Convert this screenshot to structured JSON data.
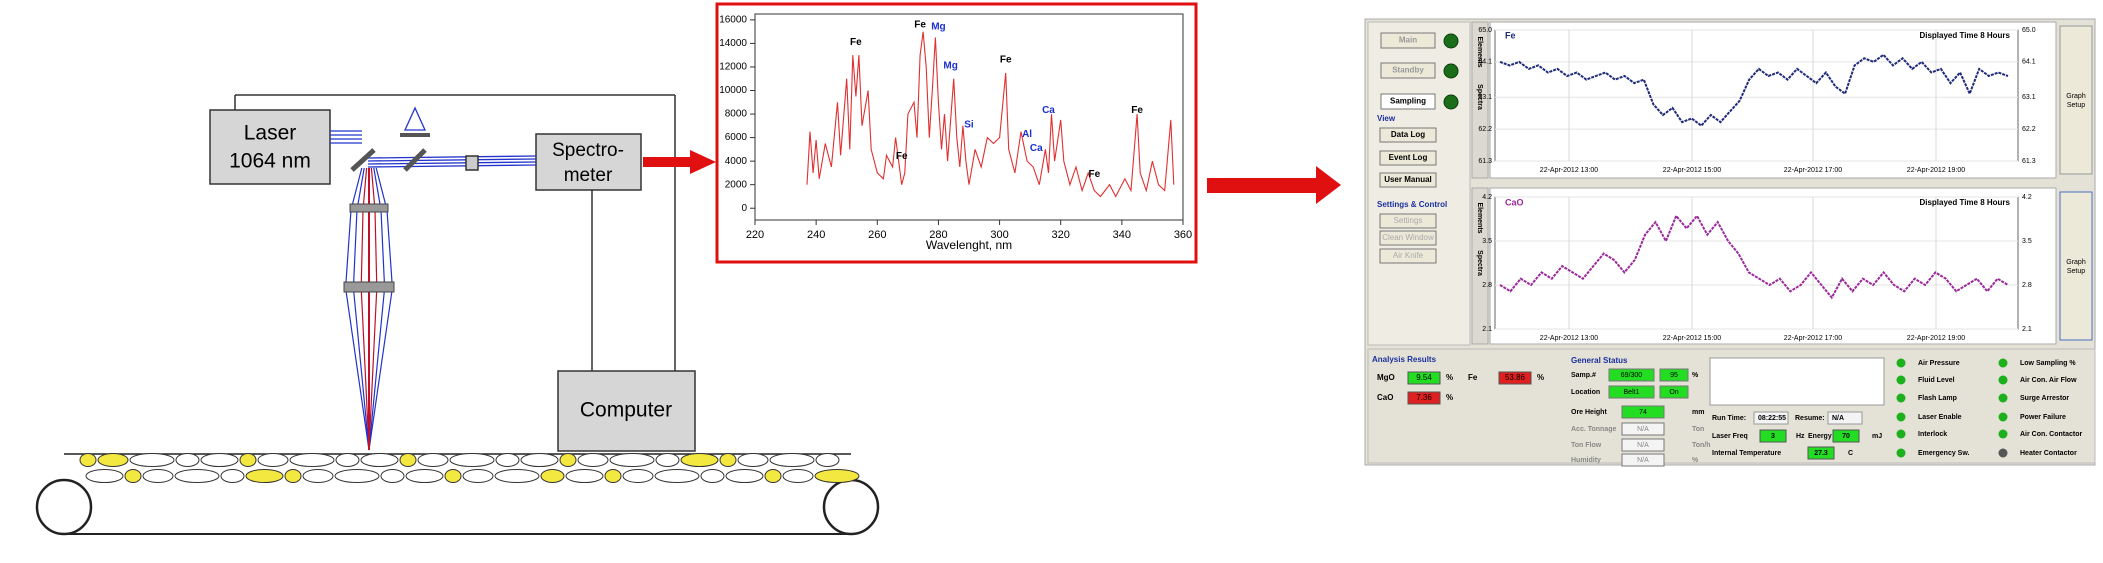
{
  "schematic": {
    "laser": [
      "Laser",
      "1064 nm"
    ],
    "spectrometer": [
      "Spectro-",
      "meter"
    ],
    "computer": "Computer"
  },
  "chart_data": {
    "type": "line",
    "xlabel": "Wavelenght, nm",
    "xlim": [
      220,
      360
    ],
    "xticks": [
      220,
      240,
      260,
      280,
      300,
      320,
      340,
      360
    ],
    "ylim": [
      -1000,
      16500
    ],
    "yticks": [
      0,
      2000,
      4000,
      6000,
      8000,
      10000,
      12000,
      14000,
      16000
    ],
    "x": [
      237,
      238,
      239,
      240,
      241,
      243,
      245,
      247,
      248,
      250,
      251,
      252,
      253,
      254,
      255,
      257,
      258,
      260,
      262,
      263,
      265,
      266,
      268,
      269,
      270,
      272,
      273,
      274,
      275,
      276,
      277,
      278,
      279,
      280,
      281,
      282,
      283,
      285,
      286,
      287,
      288,
      289,
      290,
      292,
      294,
      296,
      298,
      300,
      302,
      303,
      305,
      307,
      309,
      311,
      313,
      315,
      316,
      317,
      318,
      320,
      321,
      323,
      325,
      327,
      329,
      331,
      333,
      336,
      338,
      341,
      343,
      345,
      346,
      348,
      350,
      352,
      354,
      356,
      357
    ],
    "series": [
      {
        "color": "#e03030",
        "values": [
          2000,
          6500,
          3000,
          5800,
          2500,
          5500,
          3500,
          9000,
          4500,
          11000,
          5000,
          13000,
          9500,
          13000,
          7000,
          10000,
          5000,
          3000,
          2500,
          4500,
          3500,
          6000,
          2000,
          3000,
          8000,
          9000,
          6000,
          13000,
          15000,
          12000,
          6000,
          10000,
          14500,
          9000,
          5000,
          8000,
          4000,
          11000,
          6000,
          3500,
          7000,
          4000,
          2000,
          5000,
          3500,
          6000,
          5500,
          6000,
          11500,
          5000,
          3000,
          6500,
          4000,
          3500,
          2000,
          5000,
          3000,
          8000,
          4000,
          7500,
          4000,
          2000,
          3500,
          1500,
          3000,
          1500,
          1000,
          2000,
          1000,
          2500,
          1500,
          8000,
          3000,
          1500,
          4000,
          2000,
          1500,
          7500,
          2000
        ]
      }
    ],
    "annotations": [
      {
        "text": "Fe",
        "x": 253,
        "y": 13500,
        "color": "#000"
      },
      {
        "text": "Fe",
        "x": 268,
        "y": 3800,
        "color": "#000"
      },
      {
        "text": "Fe",
        "x": 274,
        "y": 15000,
        "color": "#000"
      },
      {
        "text": "Mg",
        "x": 280,
        "y": 14800,
        "color": "#1a2fd0"
      },
      {
        "text": "Mg",
        "x": 284,
        "y": 11500,
        "color": "#1a2fd0"
      },
      {
        "text": "Si",
        "x": 290,
        "y": 6500,
        "color": "#1a2fd0"
      },
      {
        "text": "Fe",
        "x": 302,
        "y": 12000,
        "color": "#000"
      },
      {
        "text": "Al",
        "x": 309,
        "y": 5700,
        "color": "#1a2fd0"
      },
      {
        "text": "Ca",
        "x": 312,
        "y": 4500,
        "color": "#1a2fd0"
      },
      {
        "text": "Ca",
        "x": 316,
        "y": 7700,
        "color": "#1a2fd0"
      },
      {
        "text": "Fe",
        "x": 331,
        "y": 2300,
        "color": "#000"
      },
      {
        "text": "Fe",
        "x": 345,
        "y": 7700,
        "color": "#000"
      }
    ]
  },
  "screenshot": {
    "sidebar": {
      "buttons": [
        "Main",
        "Standby",
        "Sampling"
      ],
      "view_title": "View",
      "view_buttons": [
        "Data Log",
        "Event Log",
        "User Manual"
      ],
      "settings_title": "Settings & Control",
      "settings_buttons": [
        "Settings",
        "Clean Window",
        "Air Knife"
      ]
    },
    "tabs": [
      "Elements",
      "Spectra"
    ],
    "graphs": [
      {
        "label": "Fe",
        "time_label": "Displayed Time 8 Hours",
        "setup": [
          "Graph",
          "Setup"
        ],
        "color": "#1f2a7a",
        "xticks": [
          "22-Apr-2012 13:00",
          "22-Apr-2012 15:00",
          "22-Apr-2012 17:00",
          "22-Apr-2012 19:00"
        ],
        "ylim": [
          61.3,
          65
        ],
        "yticks": [
          61.3,
          62.2,
          63.1,
          64.1,
          {
            "value": 65,
            "label": "65.0"
          }
        ],
        "values": [
          64.1,
          64.0,
          64.1,
          63.9,
          64.0,
          63.8,
          63.9,
          63.7,
          63.8,
          63.6,
          63.7,
          63.8,
          63.6,
          63.7,
          63.5,
          63.6,
          62.9,
          62.6,
          62.8,
          62.4,
          62.5,
          62.3,
          62.6,
          62.4,
          62.7,
          63.0,
          63.6,
          63.9,
          63.7,
          63.8,
          63.6,
          63.9,
          63.7,
          63.5,
          63.8,
          63.4,
          63.2,
          64.0,
          64.2,
          64.1,
          64.3,
          64.0,
          64.2,
          63.9,
          64.1,
          63.8,
          63.9,
          63.5,
          63.8,
          63.2,
          63.9,
          63.7,
          63.8,
          63.7
        ]
      },
      {
        "label": "CaO",
        "time_label": "Displayed Time 8 Hours",
        "setup": [
          "Graph",
          "Setup"
        ],
        "color": "#9a2a9a",
        "xticks": [
          "22-Apr-2012 13:00",
          "22-Apr-2012 15:00",
          "22-Apr-2012 17:00",
          "22-Apr-2012 19:00"
        ],
        "ylim": [
          2.1,
          4.2
        ],
        "yticks": [
          2.1,
          2.8,
          3.5,
          4.2
        ],
        "values": [
          2.8,
          2.7,
          2.9,
          2.8,
          3.0,
          2.9,
          3.1,
          3.0,
          2.9,
          3.1,
          3.3,
          3.2,
          3.0,
          3.2,
          3.6,
          3.8,
          3.5,
          3.9,
          3.7,
          3.9,
          3.6,
          3.8,
          3.5,
          3.3,
          3.0,
          2.9,
          2.8,
          2.9,
          2.7,
          2.8,
          3.0,
          2.8,
          2.6,
          2.9,
          2.7,
          2.9,
          2.8,
          3.0,
          2.8,
          2.7,
          2.9,
          2.8,
          3.0,
          2.9,
          2.7,
          2.8,
          2.9,
          2.7,
          2.9,
          2.8
        ]
      }
    ],
    "analysis": {
      "title": "Analysis Results",
      "rows": [
        {
          "name": "MgO",
          "value": "9.54",
          "unit": "%"
        },
        {
          "name": "Fe",
          "value": "53.86",
          "unit": "%"
        },
        {
          "name": "CaO",
          "value": "7.36",
          "unit": "%"
        }
      ]
    },
    "status": {
      "title": "General Status",
      "rows": [
        {
          "name": "Samp.#",
          "values": [
            "69/300",
            "95"
          ],
          "unit": "%"
        },
        {
          "name": "Location",
          "values": [
            "Belt1",
            "On"
          ],
          "unit": ""
        },
        {
          "name": "Ore Height",
          "values": [
            "74"
          ],
          "unit": "mm"
        },
        {
          "name": "Acc. Tonnage",
          "values": [
            "N/A"
          ],
          "unit": "Ton"
        },
        {
          "name": "Ton Flow",
          "values": [
            "N/A"
          ],
          "unit": "Ton/h"
        },
        {
          "name": "Humidity",
          "values": [
            "N/A"
          ],
          "unit": "%"
        }
      ]
    },
    "run": {
      "run_time": "Run Time:",
      "run_value": "08:22:55",
      "resume": "Resume:",
      "resume_value": "N/A",
      "laser_freq": "Laser  Freq",
      "freq_value": "3",
      "freq_unit": "Hz",
      "energy": "Energy",
      "energy_value": "70",
      "energy_unit": "mJ",
      "temp": "Internal Temperature",
      "temp_value": "27.3",
      "temp_unit": "C"
    },
    "lights": {
      "names": [
        "Air Pressure",
        "Fluid Level",
        "Flash Lamp",
        "Laser Enable",
        "Interlock",
        "Emergency Sw.",
        "Low Sampling %",
        "Air Con. Air Flow",
        "Surge Arrestor",
        "Power Failure",
        "Air Con. Contactor",
        "Heater Contactor"
      ],
      "colors": [
        "#1cb01c",
        "#1cb01c",
        "#1cb01c",
        "#1cb01c",
        "#1cb01c",
        "#1cb01c",
        "#1cb01c",
        "#1cb01c",
        "#1cb01c",
        "#1cb01c",
        "#1cb01c",
        "#555555"
      ]
    }
  }
}
